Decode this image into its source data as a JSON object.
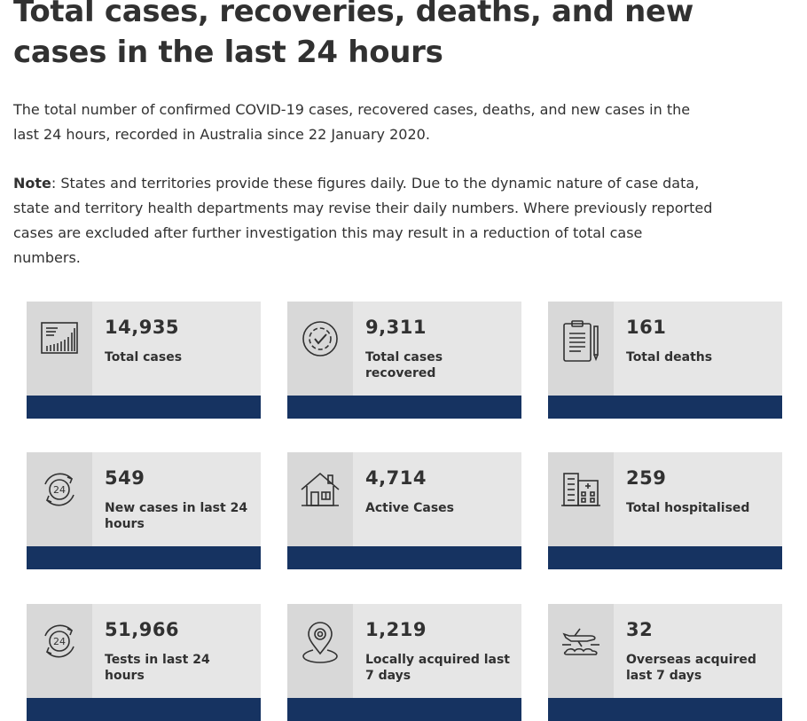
{
  "page": {
    "title": "Total cases, recoveries, deaths, and new cases in the last 24 hours",
    "intro": "The total number of confirmed COVID-19 cases, recovered cases, deaths, and new cases in the last 24 hours, recorded in Australia since 22 January 2020.",
    "note_label": "Note",
    "note_text": ": States and territories provide these figures daily. Due to the dynamic nature of case data, state and territory health departments may revise their daily numbers. Where previously reported cases are excluded after further investigation this may result in a reduction of total case numbers."
  },
  "colors": {
    "accent_bar": "#163361",
    "card_bg": "#e6e6e6",
    "icon_bg": "#d8d8d8",
    "text": "#313131"
  },
  "cards": [
    {
      "value": "14,935",
      "label": "Total cases",
      "icon": "bar-chart-icon"
    },
    {
      "value": "9,311",
      "label": "Total cases recovered",
      "icon": "check-circle-icon"
    },
    {
      "value": "161",
      "label": "Total deaths",
      "icon": "clipboard-icon"
    },
    {
      "value": "549",
      "label": "New cases in last 24 hours",
      "icon": "24-hours-icon"
    },
    {
      "value": "4,714",
      "label": "Active Cases",
      "icon": "house-icon"
    },
    {
      "value": "259",
      "label": "Total hospitalised",
      "icon": "hospital-icon"
    },
    {
      "value": "51,966",
      "label": "Tests in last 24 hours",
      "icon": "24-hours-icon"
    },
    {
      "value": "1,219",
      "label": "Locally acquired last 7 days",
      "icon": "location-pin-icon"
    },
    {
      "value": "32",
      "label": "Overseas acquired last 7 days",
      "icon": "airplane-icon"
    }
  ]
}
